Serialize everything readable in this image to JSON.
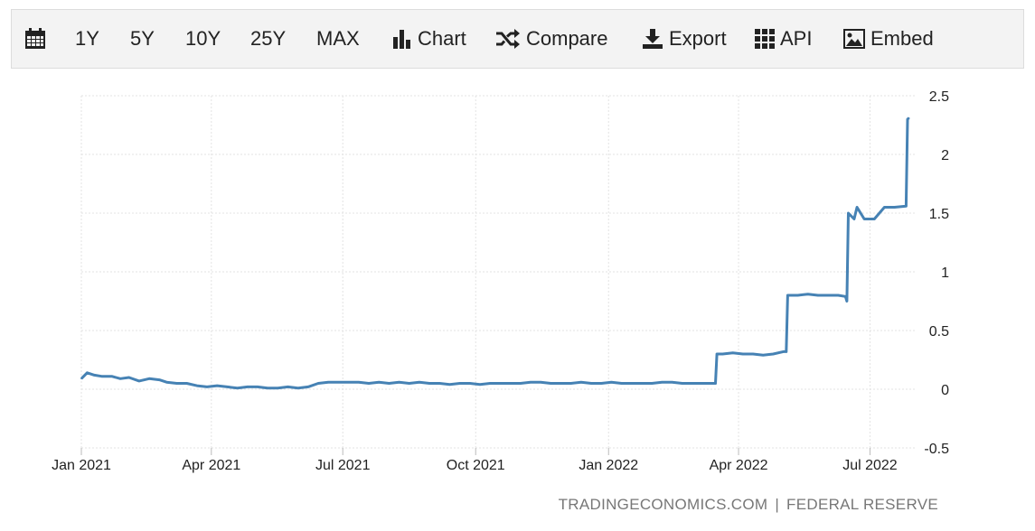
{
  "toolbar": {
    "items": [
      {
        "icon": "calendar-icon",
        "label": ""
      },
      {
        "icon": "",
        "label": "1Y"
      },
      {
        "icon": "",
        "label": "5Y"
      },
      {
        "icon": "",
        "label": "10Y"
      },
      {
        "icon": "",
        "label": "25Y"
      },
      {
        "icon": "",
        "label": "MAX"
      },
      {
        "icon": "bar-chart-icon",
        "label": "Chart"
      },
      {
        "icon": "shuffle-icon",
        "label": "Compare"
      },
      {
        "icon": "download-icon",
        "label": "Export"
      },
      {
        "icon": "grid-icon",
        "label": "API"
      },
      {
        "icon": "image-icon",
        "label": "Embed"
      }
    ]
  },
  "source": {
    "left": "TRADINGECONOMICS.COM",
    "separator": "|",
    "right": "FEDERAL RESERVE"
  },
  "colors": {
    "line": "#4682b4",
    "grid": "#e3e3e3",
    "toolbar_bg": "#f3f3f3"
  },
  "chart_data": {
    "type": "line",
    "title": "",
    "xlabel": "",
    "ylabel": "",
    "ylim": [
      -0.5,
      2.5
    ],
    "yticks": [
      -0.5,
      0,
      0.5,
      1,
      1.5,
      2,
      2.5
    ],
    "ytick_labels": [
      "-0.5",
      "0",
      "0.5",
      "1",
      "1.5",
      "2",
      "2.5"
    ],
    "xlim": [
      "2021-01-01",
      "2022-08-01"
    ],
    "xticks": [
      "2021-01-01",
      "2021-04-01",
      "2021-07-01",
      "2021-10-01",
      "2022-01-01",
      "2022-04-01",
      "2022-07-01"
    ],
    "xtick_labels": [
      "Jan 2021",
      "Apr 2021",
      "Jul 2021",
      "Oct 2021",
      "Jan 2022",
      "Apr 2022",
      "Jul 2022"
    ],
    "grid": true,
    "y_axis_position": "right",
    "series": [
      {
        "name": "",
        "x": [
          "2021-01-01",
          "2021-01-05",
          "2021-01-10",
          "2021-01-15",
          "2021-01-22",
          "2021-01-28",
          "2021-02-03",
          "2021-02-10",
          "2021-02-17",
          "2021-02-24",
          "2021-03-01",
          "2021-03-08",
          "2021-03-15",
          "2021-03-22",
          "2021-03-29",
          "2021-04-05",
          "2021-04-12",
          "2021-04-19",
          "2021-04-26",
          "2021-05-03",
          "2021-05-10",
          "2021-05-17",
          "2021-05-24",
          "2021-05-31",
          "2021-06-07",
          "2021-06-14",
          "2021-06-21",
          "2021-06-28",
          "2021-07-05",
          "2021-07-12",
          "2021-07-19",
          "2021-07-26",
          "2021-08-02",
          "2021-08-09",
          "2021-08-16",
          "2021-08-23",
          "2021-08-30",
          "2021-09-06",
          "2021-09-13",
          "2021-09-20",
          "2021-09-27",
          "2021-10-04",
          "2021-10-11",
          "2021-10-18",
          "2021-10-25",
          "2021-11-01",
          "2021-11-08",
          "2021-11-15",
          "2021-11-22",
          "2021-11-29",
          "2021-12-06",
          "2021-12-13",
          "2021-12-20",
          "2021-12-27",
          "2022-01-03",
          "2022-01-10",
          "2022-01-17",
          "2022-01-24",
          "2022-01-31",
          "2022-02-07",
          "2022-02-14",
          "2022-02-21",
          "2022-02-28",
          "2022-03-07",
          "2022-03-14",
          "2022-03-16",
          "2022-03-17",
          "2022-03-21",
          "2022-03-28",
          "2022-04-04",
          "2022-04-11",
          "2022-04-18",
          "2022-04-25",
          "2022-05-02",
          "2022-05-04",
          "2022-05-05",
          "2022-05-12",
          "2022-05-19",
          "2022-05-26",
          "2022-06-02",
          "2022-06-09",
          "2022-06-14",
          "2022-06-15",
          "2022-06-16",
          "2022-06-20",
          "2022-06-22",
          "2022-06-27",
          "2022-07-04",
          "2022-07-11",
          "2022-07-18",
          "2022-07-26",
          "2022-07-27",
          "2022-07-28"
        ],
        "values": [
          0.09,
          0.14,
          0.12,
          0.11,
          0.11,
          0.09,
          0.1,
          0.07,
          0.09,
          0.08,
          0.06,
          0.05,
          0.05,
          0.03,
          0.02,
          0.03,
          0.02,
          0.01,
          0.02,
          0.02,
          0.01,
          0.01,
          0.02,
          0.01,
          0.02,
          0.05,
          0.06,
          0.06,
          0.06,
          0.06,
          0.05,
          0.06,
          0.05,
          0.06,
          0.05,
          0.06,
          0.05,
          0.05,
          0.04,
          0.05,
          0.05,
          0.04,
          0.05,
          0.05,
          0.05,
          0.05,
          0.06,
          0.06,
          0.05,
          0.05,
          0.05,
          0.06,
          0.05,
          0.05,
          0.06,
          0.05,
          0.05,
          0.05,
          0.05,
          0.06,
          0.06,
          0.05,
          0.05,
          0.05,
          0.05,
          0.05,
          0.3,
          0.3,
          0.31,
          0.3,
          0.3,
          0.29,
          0.3,
          0.32,
          0.32,
          0.8,
          0.8,
          0.81,
          0.8,
          0.8,
          0.8,
          0.79,
          0.75,
          1.5,
          1.45,
          1.55,
          1.45,
          1.45,
          1.55,
          1.55,
          1.56,
          2.3,
          2.31
        ]
      }
    ]
  }
}
